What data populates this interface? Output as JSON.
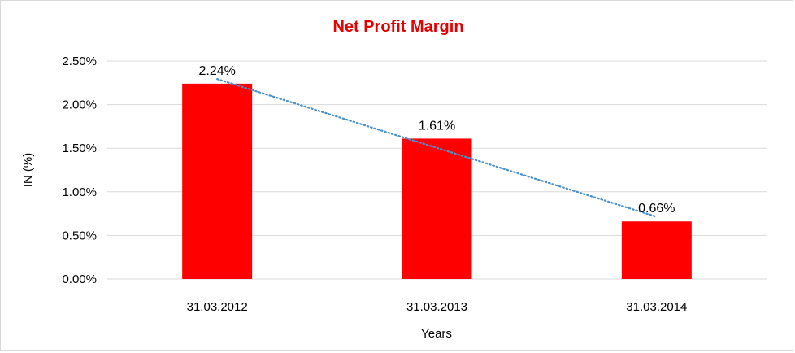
{
  "chart_data": {
    "type": "bar",
    "title": "Net Profit Margin",
    "xlabel": "Years",
    "ylabel": "IN (%)",
    "categories": [
      "31.03.2012",
      "31.03.2013",
      "31.03.2014"
    ],
    "values": [
      2.24,
      1.61,
      0.66
    ],
    "data_labels": [
      "2.24%",
      "1.61%",
      "0.66%"
    ],
    "ylim": [
      0,
      2.5
    ],
    "yticks": [
      0,
      0.5,
      1.0,
      1.5,
      2.0,
      2.5
    ],
    "ytick_labels": [
      "0.00%",
      "0.50%",
      "1.00%",
      "1.50%",
      "2.00%",
      "2.50%"
    ],
    "grid": true,
    "trendline": {
      "type": "linear",
      "style": "dotted"
    },
    "colors": {
      "bar": "#ff0000",
      "title": "#e60000",
      "trendline": "#4a90c9",
      "grid": "#d9d9d9"
    }
  }
}
